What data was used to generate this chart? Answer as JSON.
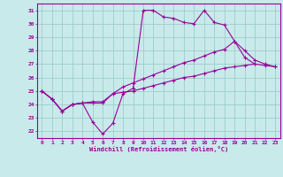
{
  "xlabel": "Windchill (Refroidissement éolien,°C)",
  "xlim": [
    -0.5,
    23.5
  ],
  "ylim": [
    21.5,
    31.5
  ],
  "xticks": [
    0,
    1,
    2,
    3,
    4,
    5,
    6,
    7,
    8,
    9,
    10,
    11,
    12,
    13,
    14,
    15,
    16,
    17,
    18,
    19,
    20,
    21,
    22,
    23
  ],
  "yticks": [
    22,
    23,
    24,
    25,
    26,
    27,
    28,
    29,
    30,
    31
  ],
  "bg_color": "#c8eaea",
  "line_color": "#990099",
  "grid_color": "#a0cccc",
  "lines": [
    {
      "x": [
        0,
        1,
        2,
        3,
        4,
        5,
        6,
        7,
        8,
        9,
        10,
        11,
        12,
        13,
        14,
        15,
        16,
        17,
        18,
        19,
        20,
        21
      ],
      "y": [
        25.0,
        24.4,
        23.5,
        24.0,
        24.1,
        22.7,
        21.8,
        22.6,
        24.8,
        25.2,
        31.0,
        31.0,
        30.5,
        30.4,
        30.1,
        30.0,
        31.0,
        30.1,
        29.9,
        28.7,
        27.5,
        27.0
      ]
    },
    {
      "x": [
        0,
        1,
        2,
        3,
        4,
        5,
        6,
        7,
        8,
        9,
        10,
        11,
        12,
        13,
        14,
        15,
        16,
        17,
        18,
        19,
        20,
        21,
        22,
        23
      ],
      "y": [
        25.0,
        24.4,
        23.5,
        24.0,
        24.1,
        24.2,
        24.2,
        24.8,
        25.3,
        25.6,
        25.9,
        26.2,
        26.5,
        26.8,
        27.1,
        27.3,
        27.6,
        27.9,
        28.1,
        28.7,
        28.0,
        27.3,
        27.0,
        26.8
      ]
    },
    {
      "x": [
        0,
        1,
        2,
        3,
        4,
        5,
        6,
        7,
        8,
        9,
        10,
        11,
        12,
        13,
        14,
        15,
        16,
        17,
        18,
        19,
        20,
        21,
        22,
        23
      ],
      "y": [
        25.0,
        24.4,
        23.5,
        24.0,
        24.1,
        24.1,
        24.1,
        24.8,
        24.9,
        25.0,
        25.2,
        25.4,
        25.6,
        25.8,
        26.0,
        26.1,
        26.3,
        26.5,
        26.7,
        26.8,
        26.9,
        27.0,
        26.9,
        26.8
      ]
    }
  ]
}
